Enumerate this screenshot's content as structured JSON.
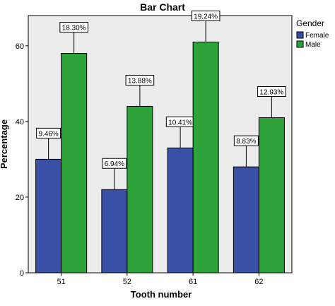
{
  "chart_data": {
    "type": "bar",
    "title": "Bar Chart",
    "xlabel": "Tooth number",
    "ylabel": "Percentage",
    "categories": [
      "51",
      "52",
      "61",
      "62"
    ],
    "ylim": [
      0,
      68
    ],
    "yticks": [
      0,
      20,
      40,
      60
    ],
    "grid": false,
    "legend": {
      "title": "Gender",
      "placement": "top-right"
    },
    "series": [
      {
        "name": "Female",
        "color": "#3a50a6",
        "values": [
          30,
          22,
          33,
          28
        ],
        "labels": [
          "9.46%",
          "6.94%",
          "10.41%",
          "8.83%"
        ]
      },
      {
        "name": "Male",
        "color": "#2ea33a",
        "values": [
          58,
          44,
          61,
          41
        ],
        "labels": [
          "18.30%",
          "13.88%",
          "19.24%",
          "12.93%"
        ]
      }
    ],
    "plot_background": "#ececec"
  }
}
